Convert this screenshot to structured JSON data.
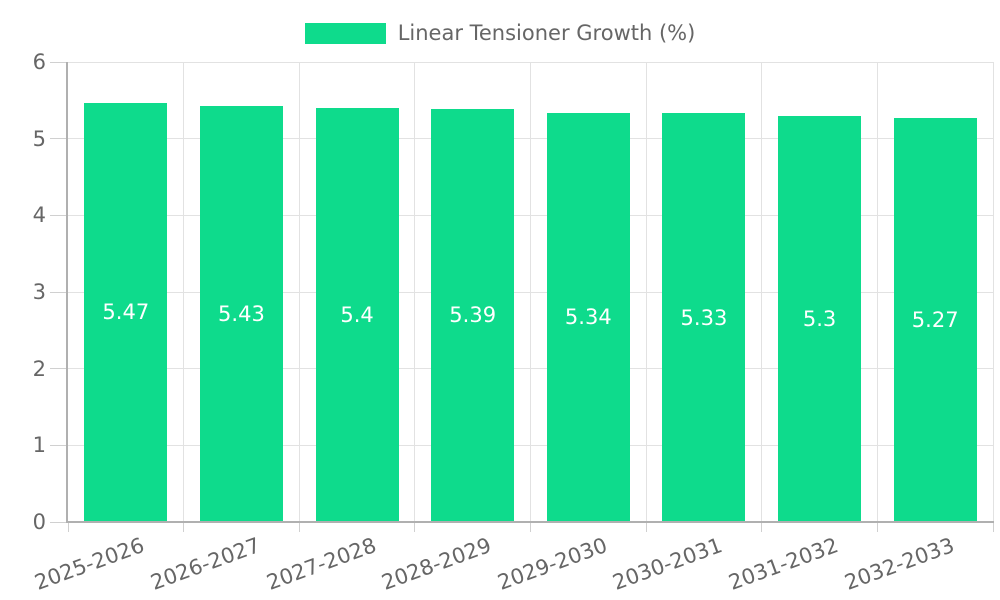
{
  "chart_data": {
    "type": "bar",
    "legend_position": "top",
    "grid": true,
    "categories": [
      "2025-2026",
      "2026-2027",
      "2027-2028",
      "2028-2029",
      "2029-2030",
      "2030-2031",
      "2031-2032",
      "2032-2033"
    ],
    "series": [
      {
        "name": "Linear Tensioner Growth (%)",
        "values": [
          5.47,
          5.43,
          5.4,
          5.39,
          5.34,
          5.33,
          5.3,
          5.27
        ]
      }
    ],
    "ylim": [
      0,
      6
    ],
    "yticks": [
      0,
      1,
      2,
      3,
      4,
      5,
      6
    ],
    "colors": {
      "bar": "#0edb8c",
      "value_label": "#ffffff",
      "axis": "#b0b0b0",
      "grid": "#e2e2e2",
      "tick": "#d0d0d0",
      "text": "#666666",
      "background": "#ffffff"
    }
  }
}
